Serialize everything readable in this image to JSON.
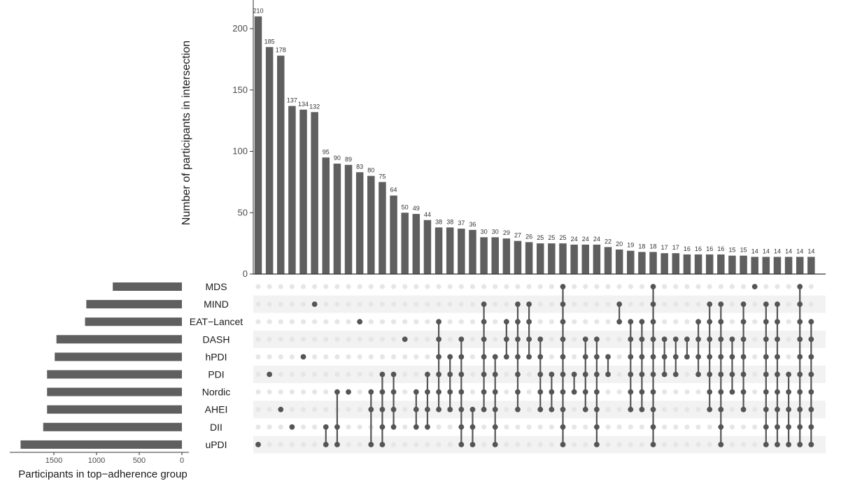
{
  "chart_data": {
    "type": "bar",
    "ylabel": "Number of participants in intersection",
    "set_size_xlabel": "Participants in top−adherence group",
    "ylim": [
      0,
      220
    ],
    "yticks": [
      0,
      50,
      100,
      150,
      200
    ],
    "set_size_ticks": [
      1500,
      1000,
      500,
      0
    ],
    "sets": [
      "MDS",
      "MIND",
      "EAT−Lancet",
      "DASH",
      "hPDI",
      "PDI",
      "Nordic",
      "AHEI",
      "DII",
      "uPDI"
    ],
    "set_sizes": [
      810,
      1120,
      1135,
      1470,
      1490,
      1580,
      1580,
      1580,
      1625,
      1890
    ],
    "set_size_xlim": [
      1950,
      0
    ],
    "values": [
      210,
      185,
      178,
      137,
      134,
      132,
      95,
      90,
      89,
      83,
      80,
      75,
      64,
      50,
      49,
      44,
      38,
      38,
      37,
      36,
      30,
      30,
      29,
      27,
      26,
      25,
      25,
      25,
      24,
      24,
      24,
      22,
      20,
      19,
      18,
      18,
      17,
      17,
      16,
      16,
      16,
      16,
      15,
      15,
      14,
      14,
      14,
      14,
      14,
      14
    ],
    "intersections": [
      [
        "uPDI"
      ],
      [
        "PDI"
      ],
      [
        "AHEI"
      ],
      [
        "DII"
      ],
      [
        "hPDI"
      ],
      [
        "MIND"
      ],
      [
        "DII",
        "uPDI"
      ],
      [
        "Nordic",
        "DII",
        "uPDI"
      ],
      [
        "Nordic"
      ],
      [
        "EAT−Lancet"
      ],
      [
        "Nordic",
        "AHEI",
        "uPDI"
      ],
      [
        "PDI",
        "Nordic",
        "AHEI",
        "DII",
        "uPDI"
      ],
      [
        "PDI",
        "Nordic",
        "AHEI",
        "DII"
      ],
      [
        "DASH"
      ],
      [
        "Nordic",
        "AHEI",
        "DII"
      ],
      [
        "PDI",
        "Nordic",
        "AHEI",
        "DII"
      ],
      [
        "EAT−Lancet",
        "DASH",
        "hPDI",
        "PDI",
        "Nordic",
        "AHEI"
      ],
      [
        "hPDI",
        "PDI",
        "Nordic",
        "AHEI"
      ],
      [
        "DASH",
        "hPDI",
        "PDI",
        "Nordic",
        "AHEI",
        "DII",
        "uPDI"
      ],
      [
        "AHEI",
        "DII",
        "uPDI"
      ],
      [
        "MIND",
        "EAT−Lancet",
        "DASH",
        "hPDI",
        "PDI",
        "Nordic",
        "AHEI"
      ],
      [
        "hPDI",
        "PDI",
        "Nordic",
        "AHEI",
        "DII",
        "uPDI"
      ],
      [
        "EAT−Lancet",
        "DASH",
        "hPDI"
      ],
      [
        "MIND",
        "EAT−Lancet",
        "DASH",
        "hPDI",
        "PDI",
        "Nordic",
        "AHEI"
      ],
      [
        "MIND",
        "EAT−Lancet",
        "DASH",
        "hPDI"
      ],
      [
        "DASH",
        "hPDI",
        "PDI",
        "Nordic",
        "AHEI"
      ],
      [
        "PDI",
        "Nordic",
        "AHEI"
      ],
      [
        "MDS",
        "MIND",
        "EAT−Lancet",
        "DASH",
        "hPDI",
        "PDI",
        "Nordic",
        "AHEI",
        "DII",
        "uPDI"
      ],
      [
        "PDI",
        "Nordic"
      ],
      [
        "DASH",
        "hPDI",
        "PDI",
        "Nordic",
        "AHEI"
      ],
      [
        "DASH",
        "hPDI",
        "PDI",
        "Nordic",
        "AHEI",
        "DII",
        "uPDI"
      ],
      [
        "hPDI",
        "PDI"
      ],
      [
        "MIND",
        "EAT−Lancet"
      ],
      [
        "EAT−Lancet",
        "DASH",
        "hPDI",
        "PDI",
        "Nordic",
        "AHEI"
      ],
      [
        "EAT−Lancet",
        "DASH",
        "hPDI",
        "PDI",
        "Nordic",
        "AHEI"
      ],
      [
        "MDS",
        "MIND",
        "EAT−Lancet",
        "DASH",
        "hPDI",
        "PDI",
        "Nordic",
        "AHEI",
        "DII",
        "uPDI"
      ],
      [
        "DASH",
        "hPDI",
        "PDI"
      ],
      [
        "DASH",
        "hPDI",
        "PDI"
      ],
      [
        "DASH",
        "hPDI"
      ],
      [
        "EAT−Lancet",
        "DASH",
        "hPDI",
        "PDI"
      ],
      [
        "MIND",
        "EAT−Lancet",
        "DASH",
        "hPDI",
        "PDI",
        "Nordic",
        "AHEI"
      ],
      [
        "MIND",
        "EAT−Lancet",
        "DASH",
        "hPDI",
        "PDI",
        "Nordic",
        "AHEI",
        "DII",
        "uPDI"
      ],
      [
        "DASH",
        "hPDI",
        "PDI",
        "Nordic"
      ],
      [
        "MIND",
        "EAT−Lancet",
        "DASH",
        "hPDI",
        "PDI",
        "Nordic",
        "AHEI"
      ],
      [
        "MDS"
      ],
      [
        "MIND",
        "EAT−Lancet",
        "DASH",
        "hPDI",
        "PDI",
        "Nordic",
        "AHEI",
        "DII",
        "uPDI"
      ],
      [
        "MIND",
        "EAT−Lancet",
        "DASH",
        "hPDI",
        "PDI",
        "Nordic",
        "AHEI",
        "DII",
        "uPDI"
      ],
      [
        "PDI",
        "Nordic",
        "AHEI",
        "DII",
        "uPDI"
      ],
      [
        "MDS",
        "MIND",
        "EAT−Lancet",
        "DASH",
        "hPDI",
        "PDI",
        "Nordic",
        "AHEI",
        "DII",
        "uPDI"
      ],
      [
        "EAT−Lancet",
        "DASH",
        "hPDI",
        "PDI",
        "Nordic",
        "AHEI",
        "DII",
        "uPDI"
      ]
    ],
    "grid": false,
    "legend": "none",
    "colors": {
      "bar": "#5f5f5f",
      "dot_active": "#555555",
      "dot_inactive": "#e6e6e6",
      "stripe": "#f2f2f2",
      "axis": "#333333"
    }
  }
}
